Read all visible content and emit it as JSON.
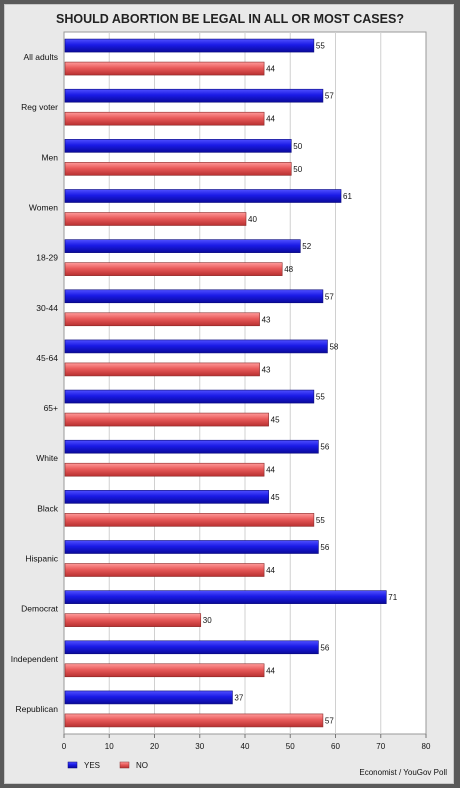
{
  "chart_data": {
    "type": "bar",
    "orientation": "horizontal",
    "title": "SHOULD ABORTION BE LEGAL IN ALL OR MOST CASES?",
    "categories": [
      "All adults",
      "Reg voter",
      "Men",
      "Women",
      "18-29",
      "30-44",
      "45-64",
      "65+",
      "White",
      "Black",
      "Hispanic",
      "Democrat",
      "Independent",
      "Republican"
    ],
    "series": [
      {
        "name": "YES",
        "color": "#1a1ae6",
        "values": [
          55,
          57,
          50,
          61,
          52,
          57,
          58,
          55,
          56,
          45,
          56,
          71,
          56,
          37
        ]
      },
      {
        "name": "NO",
        "color": "#e85a5a",
        "values": [
          44,
          44,
          50,
          40,
          48,
          43,
          43,
          45,
          44,
          55,
          44,
          30,
          44,
          57
        ]
      }
    ],
    "xlim": [
      0,
      80
    ],
    "xticks": [
      0,
      10,
      20,
      30,
      40,
      50,
      60,
      70,
      80
    ],
    "grid": true,
    "legend_position": "bottom-left",
    "source": "Economist / YouGov Poll"
  }
}
